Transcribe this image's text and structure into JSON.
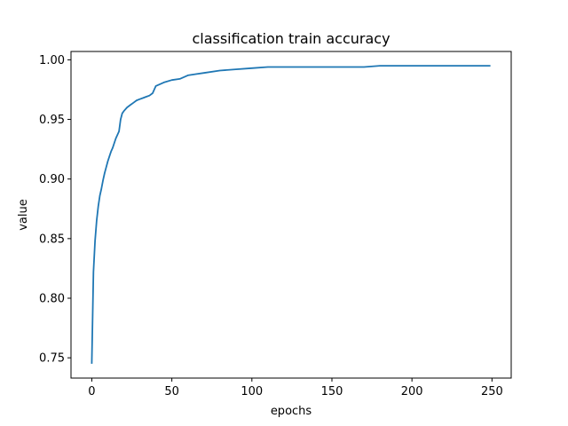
{
  "chart_data": {
    "type": "line",
    "title": "classification train accuracy",
    "xlabel": "epochs",
    "ylabel": "value",
    "xlim": [
      -13,
      262
    ],
    "ylim": [
      0.733,
      1.007
    ],
    "grid": false,
    "legend": "none",
    "xticks": [
      0,
      50,
      100,
      150,
      200,
      250
    ],
    "yticks": [
      0.75,
      0.8,
      0.85,
      0.9,
      0.95,
      1.0
    ],
    "ytick_labels": [
      "0.75",
      "0.80",
      "0.85",
      "0.90",
      "0.95",
      "1.00"
    ],
    "series": [
      {
        "color": "#1f77b4",
        "x": [
          0,
          1,
          2,
          3,
          4,
          5,
          6,
          7,
          8,
          9,
          10,
          11,
          12,
          13,
          14,
          15,
          16,
          17,
          18,
          19,
          20,
          22,
          24,
          26,
          28,
          30,
          32,
          34,
          36,
          38,
          40,
          45,
          50,
          55,
          60,
          65,
          70,
          80,
          90,
          100,
          110,
          120,
          130,
          140,
          150,
          160,
          170,
          180,
          190,
          200,
          210,
          220,
          230,
          240,
          249
        ],
        "y": [
          0.745,
          0.822,
          0.848,
          0.865,
          0.877,
          0.886,
          0.892,
          0.899,
          0.905,
          0.91,
          0.915,
          0.919,
          0.923,
          0.926,
          0.93,
          0.934,
          0.937,
          0.94,
          0.95,
          0.955,
          0.957,
          0.96,
          0.962,
          0.964,
          0.966,
          0.967,
          0.968,
          0.969,
          0.97,
          0.972,
          0.978,
          0.981,
          0.983,
          0.984,
          0.987,
          0.988,
          0.989,
          0.991,
          0.992,
          0.993,
          0.994,
          0.994,
          0.994,
          0.994,
          0.994,
          0.994,
          0.994,
          0.995,
          0.995,
          0.995,
          0.995,
          0.995,
          0.995,
          0.995,
          0.995
        ]
      }
    ]
  }
}
